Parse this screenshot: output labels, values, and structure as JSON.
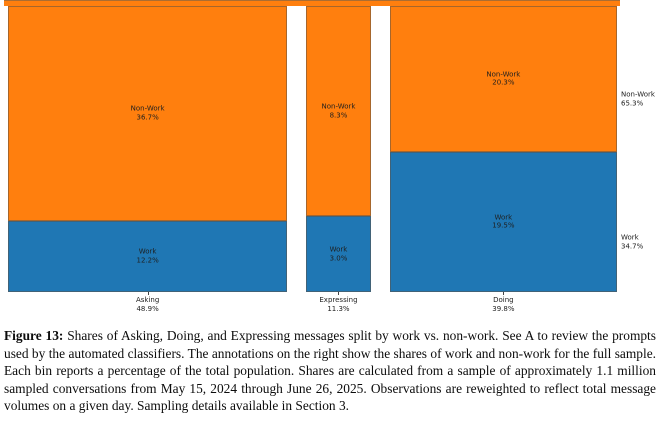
{
  "chart_data": {
    "type": "bar",
    "subtype": "mosaic-100pct-stacked",
    "title": "",
    "xlabel": "",
    "ylabel": "",
    "grid": false,
    "legend_position": "right-annotations",
    "categories": [
      {
        "label": "Asking",
        "total": 48.9,
        "total_display": "48.9%",
        "work": {
          "label": "Work",
          "value": 12.2,
          "display": "12.2%"
        },
        "non_work": {
          "label": "Non-Work",
          "value": 36.7,
          "display": "36.7%"
        }
      },
      {
        "label": "Expressing",
        "total": 11.3,
        "total_display": "11.3%",
        "work": {
          "label": "Work",
          "value": 3.0,
          "display": "3.0%"
        },
        "non_work": {
          "label": "Non-Work",
          "value": 8.3,
          "display": "8.3%"
        }
      },
      {
        "label": "Doing",
        "total": 39.8,
        "total_display": "39.8%",
        "work": {
          "label": "Work",
          "value": 19.5,
          "display": "19.5%"
        },
        "non_work": {
          "label": "Non-Work",
          "value": 20.3,
          "display": "20.3%"
        }
      }
    ],
    "full_sample_annotations": [
      {
        "label": "Non-Work",
        "value": 65.3,
        "display": "65.3%"
      },
      {
        "label": "Work",
        "value": 34.7,
        "display": "34.7%"
      }
    ],
    "colors": {
      "work": "#1f77b4",
      "non_work": "#ff7f0e",
      "segment_edge": "rgba(92,82,70,0.55)",
      "label_text": "#1f1f1f"
    },
    "cropped_top_strip": {
      "visible": true,
      "color": "#ff7f0e"
    }
  },
  "caption": {
    "label": "Figure 13:",
    "text": "Shares of Asking, Doing, and Expressing messages split by work vs. non-work. See A to review the prompts used by the automated classifiers. The annotations on the right show the shares of work and non-work for the full sample. Each bin reports a percentage of the total population. Shares are calculated from a sample of approximately 1.1 million sampled conversations from May 15, 2024 through June 26, 2025. Observations are reweighted to reflect total message volumes on a given day. Sampling details available in Section 3."
  }
}
